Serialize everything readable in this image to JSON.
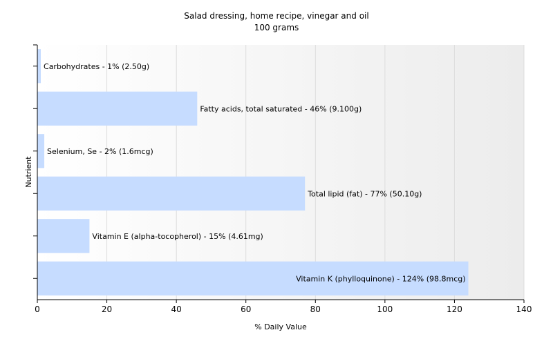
{
  "chart_data": {
    "type": "bar",
    "orientation": "horizontal",
    "title": "Salad dressing, home recipe, vinegar and oil",
    "subtitle": "100 grams",
    "xlabel": "% Daily Value",
    "ylabel": "Nutrient",
    "xlim": [
      0,
      140
    ],
    "xticks": [
      0,
      20,
      40,
      60,
      80,
      100,
      120,
      140
    ],
    "grid": true,
    "bar_color": "#c6dcff",
    "categories": [
      "Carbohydrates",
      "Fatty acids, total saturated",
      "Selenium, Se",
      "Total lipid (fat)",
      "Vitamin E (alpha-tocopherol)",
      "Vitamin K (phylloquinone)"
    ],
    "values": [
      1,
      46,
      2,
      77,
      15,
      124
    ],
    "labels": [
      "Carbohydrates - 1% (2.50g)",
      "Fatty acids, total saturated - 46% (9.100g)",
      "Selenium, Se - 2% (1.6mcg)",
      "Total lipid (fat) - 77% (50.10g)",
      "Vitamin E (alpha-tocopherol) - 15% (4.61mg)",
      "Vitamin K (phylloquinone) - 124% (98.8mcg)"
    ]
  }
}
